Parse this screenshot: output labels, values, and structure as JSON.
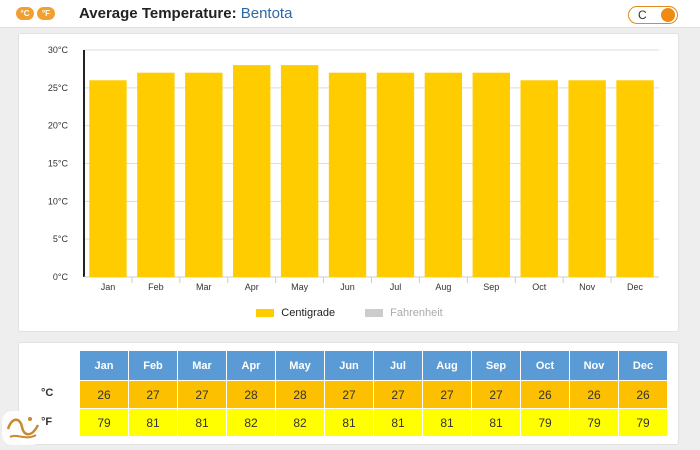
{
  "header": {
    "unit_icons": [
      "°C",
      "°F"
    ],
    "title_prefix": "Average Temperature:",
    "city": "Bentota",
    "toggle_label": "C"
  },
  "chart_data": {
    "type": "bar",
    "categories": [
      "Jan",
      "Feb",
      "Mar",
      "Apr",
      "May",
      "Jun",
      "Jul",
      "Aug",
      "Sep",
      "Oct",
      "Nov",
      "Dec"
    ],
    "series": [
      {
        "name": "Centigrade",
        "values": [
          26,
          27,
          27,
          28,
          28,
          27,
          27,
          27,
          27,
          26,
          26,
          26
        ],
        "color": "#ffcc00"
      }
    ],
    "y_ticks": [
      "0°C",
      "5°C",
      "10°C",
      "15°C",
      "20°C",
      "25°C",
      "30°C"
    ],
    "ylim": [
      0,
      30
    ],
    "grid": true,
    "legend": [
      {
        "label": "Centigrade",
        "color": "#ffcc00",
        "active": true
      },
      {
        "label": "Fahrenheit",
        "color": "#cccccc",
        "active": false
      }
    ],
    "legend_position": "bottom-center"
  },
  "table": {
    "months": [
      "Jan",
      "Feb",
      "Mar",
      "Apr",
      "May",
      "Jun",
      "Jul",
      "Aug",
      "Sep",
      "Oct",
      "Nov",
      "Dec"
    ],
    "celsius_label": "°C",
    "fahrenheit_label": "°F",
    "celsius": [
      "26",
      "27",
      "27",
      "28",
      "28",
      "27",
      "27",
      "27",
      "27",
      "26",
      "26",
      "26"
    ],
    "fahrenheit": [
      "79",
      "81",
      "81",
      "82",
      "82",
      "81",
      "81",
      "81",
      "81",
      "79",
      "79",
      "79"
    ]
  },
  "colors": {
    "accent": "#f08a10",
    "header_blue": "#5b9bd5",
    "celsius_row": "#fcc000",
    "fahrenheit_row": "#ffff00"
  }
}
